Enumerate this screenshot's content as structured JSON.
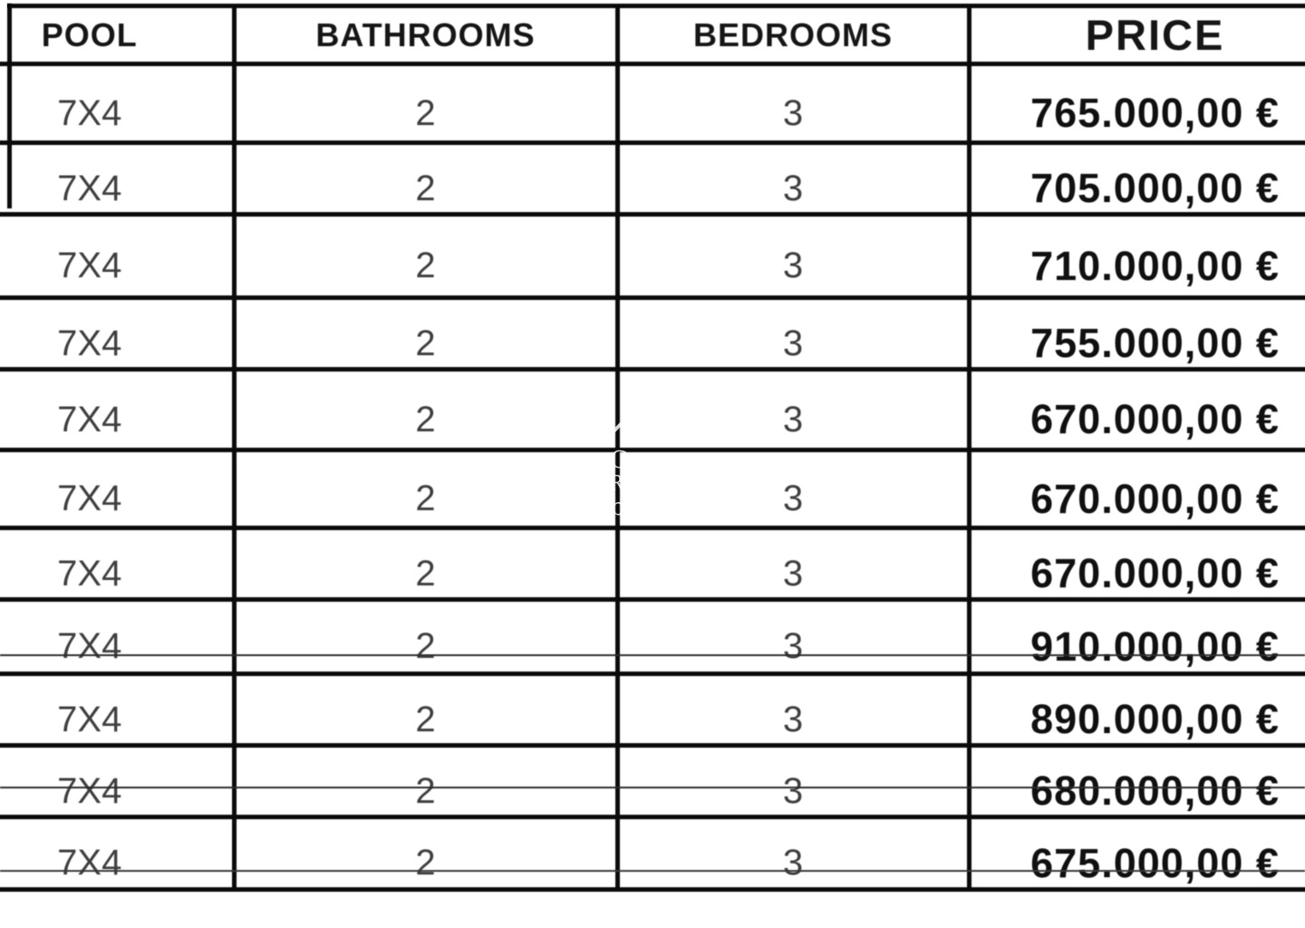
{
  "document": {
    "kind": "property price list table"
  },
  "table": {
    "headers": [
      {
        "key": "pool",
        "label": "POOL"
      },
      {
        "key": "bathrooms",
        "label": "BATHROOMS"
      },
      {
        "key": "bedrooms",
        "label": "BEDROOMS"
      },
      {
        "key": "price",
        "label": "PRICE"
      }
    ],
    "rows": [
      {
        "pool": "7X4",
        "bathrooms": "2",
        "bedrooms": "3",
        "price": "765.000,00 €"
      },
      {
        "pool": "7X4",
        "bathrooms": "2",
        "bedrooms": "3",
        "price": "705.000,00 €"
      },
      {
        "pool": "7X4",
        "bathrooms": "2",
        "bedrooms": "3",
        "price": "710.000,00 €"
      },
      {
        "pool": "7X4",
        "bathrooms": "2",
        "bedrooms": "3",
        "price": "755.000,00 €"
      },
      {
        "pool": "7X4",
        "bathrooms": "2",
        "bedrooms": "3",
        "price": "670.000,00 €"
      },
      {
        "pool": "7X4",
        "bathrooms": "2",
        "bedrooms": "3",
        "price": "670.000,00 €"
      },
      {
        "pool": "7X4",
        "bathrooms": "2",
        "bedrooms": "3",
        "price": "670.000,00 €"
      },
      {
        "pool": "7X4",
        "bathrooms": "2",
        "bedrooms": "3",
        "price": "910.000,00 €"
      },
      {
        "pool": "7X4",
        "bathrooms": "2",
        "bedrooms": "3",
        "price": "890.000,00 €"
      },
      {
        "pool": "7X4",
        "bathrooms": "2",
        "bedrooms": "3",
        "price": "680.000,00 €"
      },
      {
        "pool": "7X4",
        "bathrooms": "2",
        "bedrooms": "3",
        "price": "675.000,00 €"
      }
    ],
    "colors": {
      "border": "#0b0b0b",
      "header_text": "#161616",
      "cell_text": "#3f3f3f",
      "price_text": "#101010",
      "background": "#ffffff"
    }
  },
  "watermark": {
    "letters": {
      "l1": "C",
      "l2": "R",
      "l3": "b"
    }
  }
}
